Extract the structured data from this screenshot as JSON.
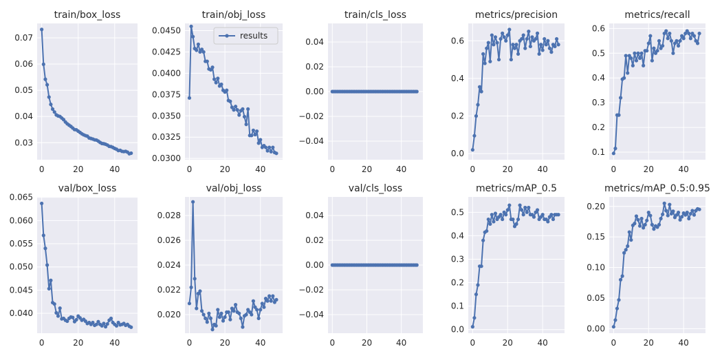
{
  "colors": {
    "series": "#4c72b0",
    "plot_bg": "#eaeaf2",
    "grid": "#ffffff"
  },
  "legend": {
    "label": "results",
    "location": "upper right of train/obj_loss"
  },
  "chart_data": [
    {
      "type": "line",
      "title": "train/box_loss",
      "x_ticks": [
        0,
        20,
        40
      ],
      "y_ticks": [
        0.03,
        0.04,
        0.05,
        0.06,
        0.07
      ],
      "y_tick_labels": [
        "0.03",
        "0.04",
        "0.05",
        "0.06",
        "0.07"
      ],
      "xlim": [
        -2.5,
        52.5
      ],
      "ylim": [
        0.0235,
        0.0755
      ],
      "series": [
        {
          "values": [
            0.0732,
            0.0599,
            0.0542,
            0.0521,
            0.0474,
            0.0446,
            0.0428,
            0.0417,
            0.0406,
            0.0402,
            0.04,
            0.0394,
            0.0388,
            0.0379,
            0.0372,
            0.0367,
            0.0362,
            0.0356,
            0.035,
            0.0349,
            0.0344,
            0.0339,
            0.0334,
            0.033,
            0.0327,
            0.0325,
            0.0318,
            0.0316,
            0.0314,
            0.0311,
            0.031,
            0.0306,
            0.0301,
            0.0297,
            0.0296,
            0.0294,
            0.0291,
            0.0286,
            0.0285,
            0.0282,
            0.0278,
            0.0275,
            0.027,
            0.0271,
            0.0267,
            0.0266,
            0.0267,
            0.0264,
            0.0258,
            0.026
          ]
        }
      ]
    },
    {
      "type": "line",
      "title": "train/obj_loss",
      "x_ticks": [
        0,
        20,
        40
      ],
      "y_ticks": [
        0.03,
        0.0325,
        0.035,
        0.0375,
        0.04,
        0.0425,
        0.045
      ],
      "y_tick_labels": [
        "0.0300",
        "0.0325",
        "0.0350",
        "0.0375",
        "0.0400",
        "0.0425",
        "0.0450"
      ],
      "xlim": [
        -2.5,
        52.5
      ],
      "ylim": [
        0.02985,
        0.04585
      ],
      "legend": "results",
      "series": [
        {
          "name": "results",
          "values": [
            0.0371,
            0.0455,
            0.0443,
            0.0429,
            0.0427,
            0.0434,
            0.0425,
            0.0428,
            0.0425,
            0.0414,
            0.0414,
            0.0405,
            0.0404,
            0.0407,
            0.0393,
            0.0389,
            0.0394,
            0.0385,
            0.0387,
            0.038,
            0.0378,
            0.038,
            0.0368,
            0.0367,
            0.036,
            0.0357,
            0.0361,
            0.0357,
            0.0351,
            0.0356,
            0.0358,
            0.0349,
            0.034,
            0.0358,
            0.0327,
            0.0327,
            0.0333,
            0.0328,
            0.0332,
            0.0318,
            0.0322,
            0.0313,
            0.0315,
            0.0313,
            0.0309,
            0.0313,
            0.0308,
            0.0313,
            0.0307,
            0.0306
          ]
        }
      ]
    },
    {
      "type": "line",
      "title": "train/cls_loss",
      "x_ticks": [
        0,
        20,
        40
      ],
      "y_ticks": [
        -0.04,
        -0.02,
        0.0,
        0.02,
        0.04
      ],
      "y_tick_labels": [
        "−0.04",
        "−0.02",
        "0.00",
        "0.02",
        "0.04"
      ],
      "xlim": [
        -2.5,
        52.5
      ],
      "ylim": [
        -0.055,
        0.055
      ],
      "series": [
        {
          "values": [
            0,
            0,
            0,
            0,
            0,
            0,
            0,
            0,
            0,
            0,
            0,
            0,
            0,
            0,
            0,
            0,
            0,
            0,
            0,
            0,
            0,
            0,
            0,
            0,
            0,
            0,
            0,
            0,
            0,
            0,
            0,
            0,
            0,
            0,
            0,
            0,
            0,
            0,
            0,
            0,
            0,
            0,
            0,
            0,
            0,
            0,
            0,
            0,
            0,
            0
          ]
        }
      ]
    },
    {
      "type": "line",
      "title": "metrics/precision",
      "x_ticks": [
        0,
        20,
        40
      ],
      "y_ticks": [
        0.0,
        0.2,
        0.4,
        0.6
      ],
      "y_tick_labels": [
        "0.0",
        "0.2",
        "0.4",
        "0.6"
      ],
      "xlim": [
        -2.5,
        52.5
      ],
      "ylim": [
        -0.0325,
        0.6925
      ],
      "series": [
        {
          "values": [
            0.02,
            0.095,
            0.2,
            0.26,
            0.355,
            0.33,
            0.53,
            0.48,
            0.56,
            0.59,
            0.49,
            0.63,
            0.58,
            0.62,
            0.59,
            0.5,
            0.61,
            0.64,
            0.62,
            0.6,
            0.63,
            0.66,
            0.5,
            0.58,
            0.56,
            0.58,
            0.53,
            0.6,
            0.61,
            0.63,
            0.56,
            0.61,
            0.65,
            0.57,
            0.62,
            0.6,
            0.61,
            0.64,
            0.53,
            0.58,
            0.55,
            0.61,
            0.58,
            0.6,
            0.56,
            0.54,
            0.58,
            0.57,
            0.61,
            0.58
          ]
        }
      ]
    },
    {
      "type": "line",
      "title": "metrics/recall",
      "x_ticks": [
        0,
        20,
        40
      ],
      "y_ticks": [
        0.1,
        0.2,
        0.3,
        0.4,
        0.5,
        0.6
      ],
      "y_tick_labels": [
        "0.1",
        "0.2",
        "0.3",
        "0.4",
        "0.5",
        "0.6"
      ],
      "xlim": [
        -2.5,
        52.5
      ],
      "ylim": [
        0.0695,
        0.6205
      ],
      "series": [
        {
          "values": [
            0.095,
            0.115,
            0.25,
            0.25,
            0.32,
            0.395,
            0.4,
            0.49,
            0.42,
            0.49,
            0.48,
            0.45,
            0.5,
            0.47,
            0.5,
            0.48,
            0.5,
            0.45,
            0.51,
            0.51,
            0.54,
            0.57,
            0.47,
            0.52,
            0.5,
            0.51,
            0.55,
            0.52,
            0.53,
            0.58,
            0.59,
            0.56,
            0.58,
            0.55,
            0.5,
            0.54,
            0.55,
            0.53,
            0.55,
            0.57,
            0.56,
            0.58,
            0.59,
            0.58,
            0.56,
            0.58,
            0.57,
            0.55,
            0.54,
            0.58
          ]
        }
      ]
    },
    {
      "type": "line",
      "title": "val/box_loss",
      "x_ticks": [
        0,
        20,
        40
      ],
      "y_ticks": [
        0.04,
        0.045,
        0.05,
        0.055,
        0.06,
        0.065
      ],
      "y_tick_labels": [
        "0.040",
        "0.045",
        "0.050",
        "0.055",
        "0.060",
        "0.065"
      ],
      "xlim": [
        -2.5,
        52.5
      ],
      "ylim": [
        0.0357,
        0.0651
      ],
      "series": [
        {
          "values": [
            0.0637,
            0.0568,
            0.054,
            0.0504,
            0.0453,
            0.0471,
            0.0423,
            0.042,
            0.0401,
            0.0394,
            0.0411,
            0.0388,
            0.0389,
            0.0385,
            0.0383,
            0.0389,
            0.0392,
            0.0391,
            0.0382,
            0.0386,
            0.0394,
            0.039,
            0.0385,
            0.0387,
            0.0383,
            0.0378,
            0.038,
            0.0376,
            0.038,
            0.0374,
            0.0376,
            0.0382,
            0.0376,
            0.0373,
            0.0378,
            0.0371,
            0.0377,
            0.0385,
            0.0389,
            0.038,
            0.0376,
            0.0373,
            0.038,
            0.0375,
            0.0376,
            0.0378,
            0.0374,
            0.0376,
            0.0372,
            0.037
          ]
        }
      ]
    },
    {
      "type": "line",
      "title": "val/obj_loss",
      "x_ticks": [
        0,
        20,
        40
      ],
      "y_ticks": [
        0.02,
        0.022,
        0.024,
        0.026,
        0.028
      ],
      "y_tick_labels": [
        "0.020",
        "0.022",
        "0.024",
        "0.026",
        "0.028"
      ],
      "xlim": [
        -2.5,
        52.5
      ],
      "ylim": [
        0.0185,
        0.0295
      ],
      "series": [
        {
          "values": [
            0.0209,
            0.0222,
            0.0291,
            0.0229,
            0.0205,
            0.0217,
            0.0219,
            0.0203,
            0.02,
            0.0197,
            0.0194,
            0.0201,
            0.0197,
            0.0188,
            0.0192,
            0.0191,
            0.0204,
            0.0198,
            0.0201,
            0.0195,
            0.0198,
            0.0202,
            0.0202,
            0.0196,
            0.0205,
            0.0203,
            0.0208,
            0.0202,
            0.0201,
            0.0197,
            0.019,
            0.0199,
            0.02,
            0.0204,
            0.0202,
            0.02,
            0.0211,
            0.0206,
            0.0204,
            0.0197,
            0.0204,
            0.0209,
            0.0206,
            0.0213,
            0.0211,
            0.0215,
            0.0211,
            0.0215,
            0.021,
            0.0212
          ]
        }
      ]
    },
    {
      "type": "line",
      "title": "val/cls_loss",
      "x_ticks": [
        0,
        20,
        40
      ],
      "y_ticks": [
        -0.04,
        -0.02,
        0.0,
        0.02,
        0.04
      ],
      "y_tick_labels": [
        "−0.04",
        "−0.02",
        "0.00",
        "0.02",
        "0.04"
      ],
      "xlim": [
        -2.5,
        52.5
      ],
      "ylim": [
        -0.055,
        0.055
      ],
      "series": [
        {
          "values": [
            0,
            0,
            0,
            0,
            0,
            0,
            0,
            0,
            0,
            0,
            0,
            0,
            0,
            0,
            0,
            0,
            0,
            0,
            0,
            0,
            0,
            0,
            0,
            0,
            0,
            0,
            0,
            0,
            0,
            0,
            0,
            0,
            0,
            0,
            0,
            0,
            0,
            0,
            0,
            0,
            0,
            0,
            0,
            0,
            0,
            0,
            0,
            0,
            0,
            0
          ]
        }
      ]
    },
    {
      "type": "line",
      "title": "metrics/mAP_0.5",
      "x_ticks": [
        0,
        20,
        40
      ],
      "y_ticks": [
        0.0,
        0.1,
        0.2,
        0.3,
        0.4,
        0.5
      ],
      "y_tick_labels": [
        "0.0",
        "0.1",
        "0.2",
        "0.3",
        "0.4",
        "0.5"
      ],
      "xlim": [
        -2.5,
        52.5
      ],
      "ylim": [
        -0.0155,
        0.5655
      ],
      "series": [
        {
          "values": [
            0.012,
            0.05,
            0.15,
            0.19,
            0.27,
            0.27,
            0.38,
            0.415,
            0.42,
            0.47,
            0.45,
            0.49,
            0.46,
            0.495,
            0.47,
            0.48,
            0.49,
            0.47,
            0.5,
            0.49,
            0.51,
            0.53,
            0.47,
            0.47,
            0.44,
            0.45,
            0.47,
            0.53,
            0.51,
            0.49,
            0.52,
            0.5,
            0.52,
            0.49,
            0.49,
            0.48,
            0.5,
            0.51,
            0.47,
            0.48,
            0.49,
            0.47,
            0.47,
            0.46,
            0.48,
            0.49,
            0.47,
            0.49,
            0.49,
            0.49
          ]
        }
      ]
    },
    {
      "type": "line",
      "title": "metrics/mAP_0.5:0.95",
      "x_ticks": [
        0,
        20,
        40
      ],
      "y_ticks": [
        0.0,
        0.05,
        0.1,
        0.15,
        0.2
      ],
      "y_tick_labels": [
        "0.00",
        "0.05",
        "0.10",
        "0.15",
        "0.20"
      ],
      "xlim": [
        -2.5,
        52.5
      ],
      "ylim": [
        -0.0075,
        0.2155
      ],
      "series": [
        {
          "values": [
            0.003,
            0.014,
            0.033,
            0.047,
            0.08,
            0.086,
            0.124,
            0.129,
            0.135,
            0.158,
            0.145,
            0.169,
            0.172,
            0.184,
            0.178,
            0.168,
            0.18,
            0.165,
            0.17,
            0.177,
            0.19,
            0.185,
            0.17,
            0.163,
            0.168,
            0.166,
            0.17,
            0.18,
            0.187,
            0.205,
            0.193,
            0.185,
            0.203,
            0.188,
            0.192,
            0.182,
            0.186,
            0.19,
            0.178,
            0.183,
            0.189,
            0.186,
            0.19,
            0.18,
            0.188,
            0.193,
            0.186,
            0.193,
            0.196,
            0.195
          ]
        }
      ]
    }
  ]
}
